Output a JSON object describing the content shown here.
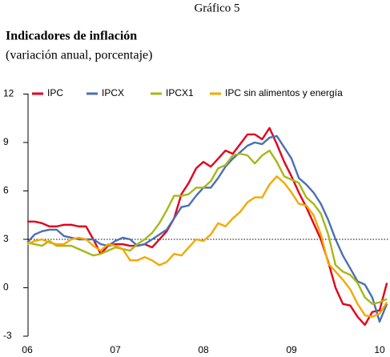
{
  "header": "Gráfico 5",
  "chart_data": {
    "type": "line",
    "title": "Indicadores de inflación",
    "subtitle": "(variación anual, porcentaje)",
    "x": [
      2006,
      2006.083,
      2006.167,
      2006.25,
      2006.333,
      2006.417,
      2006.5,
      2006.583,
      2006.667,
      2006.75,
      2006.833,
      2006.917,
      2007,
      2007.083,
      2007.167,
      2007.25,
      2007.333,
      2007.417,
      2007.5,
      2007.583,
      2007.667,
      2007.75,
      2007.833,
      2007.917,
      2008,
      2008.083,
      2008.167,
      2008.25,
      2008.333,
      2008.417,
      2008.5,
      2008.583,
      2008.667,
      2008.75,
      2008.833,
      2008.917,
      2009,
      2009.083,
      2009.167,
      2009.25,
      2009.333,
      2009.417,
      2009.5,
      2009.583,
      2009.667,
      2009.75,
      2009.833,
      2009.917,
      2010,
      2010.083
    ],
    "series": [
      {
        "name": "IPC",
        "color": "#e3001b",
        "values": [
          4.1,
          4.1,
          4.0,
          3.8,
          3.8,
          3.9,
          3.9,
          3.8,
          3.8,
          3.0,
          2.1,
          2.6,
          2.7,
          2.7,
          2.6,
          2.6,
          2.7,
          2.5,
          3.0,
          3.5,
          4.3,
          5.8,
          6.5,
          7.4,
          7.8,
          7.5,
          8.0,
          8.5,
          8.3,
          8.9,
          9.5,
          9.5,
          9.2,
          9.9,
          8.9,
          7.8,
          6.9,
          5.9,
          5.0,
          4.0,
          3.0,
          1.6,
          0.0,
          -1.0,
          -1.1,
          -1.8,
          -2.3,
          -1.5,
          -1.4,
          0.3
        ]
      },
      {
        "name": "IPCX",
        "color": "#4a6fb5",
        "values": [
          2.8,
          3.3,
          3.5,
          3.6,
          3.6,
          3.2,
          3.1,
          3.0,
          3.0,
          3.0,
          2.7,
          2.6,
          2.9,
          3.1,
          3.0,
          2.6,
          2.7,
          3.0,
          3.3,
          3.6,
          4.3,
          5.0,
          5.1,
          5.7,
          6.2,
          6.2,
          6.8,
          7.5,
          8.0,
          8.4,
          8.8,
          9.0,
          8.9,
          9.3,
          9.4,
          8.7,
          8.0,
          6.8,
          6.4,
          5.9,
          5.2,
          4.2,
          3.0,
          2.0,
          1.2,
          0.4,
          0.2,
          -0.6,
          -2.1,
          -1.0
        ]
      },
      {
        "name": "IPCX1",
        "color": "#a6b816",
        "values": [
          2.8,
          2.7,
          2.6,
          2.9,
          2.6,
          2.6,
          2.6,
          2.4,
          2.2,
          2.0,
          2.1,
          2.3,
          2.5,
          2.4,
          2.3,
          2.7,
          3.0,
          3.4,
          4.0,
          4.8,
          5.7,
          5.7,
          5.8,
          6.2,
          6.2,
          6.6,
          7.4,
          7.6,
          8.2,
          8.3,
          8.2,
          7.7,
          8.2,
          8.5,
          7.8,
          6.9,
          6.7,
          6.5,
          5.6,
          5.2,
          4.6,
          3.3,
          1.4,
          1.0,
          0.8,
          0.3,
          -0.6,
          -1.0,
          -0.9,
          -0.7
        ]
      },
      {
        "name": "IPC sin alimentos y energía",
        "color": "#f5a800",
        "values": [
          2.7,
          2.9,
          3.0,
          2.8,
          2.7,
          2.7,
          3.0,
          3.1,
          3.0,
          2.6,
          2.3,
          2.7,
          2.6,
          2.4,
          1.7,
          1.7,
          1.9,
          1.7,
          1.4,
          1.6,
          2.1,
          2.0,
          2.5,
          3.0,
          2.9,
          3.3,
          4.0,
          3.8,
          4.3,
          4.7,
          5.3,
          5.6,
          5.6,
          6.4,
          6.9,
          6.5,
          5.9,
          5.2,
          5.1,
          4.5,
          3.3,
          1.5,
          1.0,
          0.5,
          -0.1,
          -1.0,
          -1.7,
          -1.8,
          -1.6,
          -0.9
        ]
      }
    ],
    "xlim": [
      2005.99,
      2010.1
    ],
    "xticks": [
      {
        "value": 2006,
        "label": "06"
      },
      {
        "value": 2007,
        "label": "07"
      },
      {
        "value": 2008,
        "label": "08"
      },
      {
        "value": 2009,
        "label": "09"
      },
      {
        "value": 2010,
        "label": "10"
      }
    ],
    "ylim": [
      -3,
      12
    ],
    "yticks": [
      -3,
      0,
      3,
      6,
      9,
      12
    ],
    "hline": 3,
    "legend": "top"
  }
}
